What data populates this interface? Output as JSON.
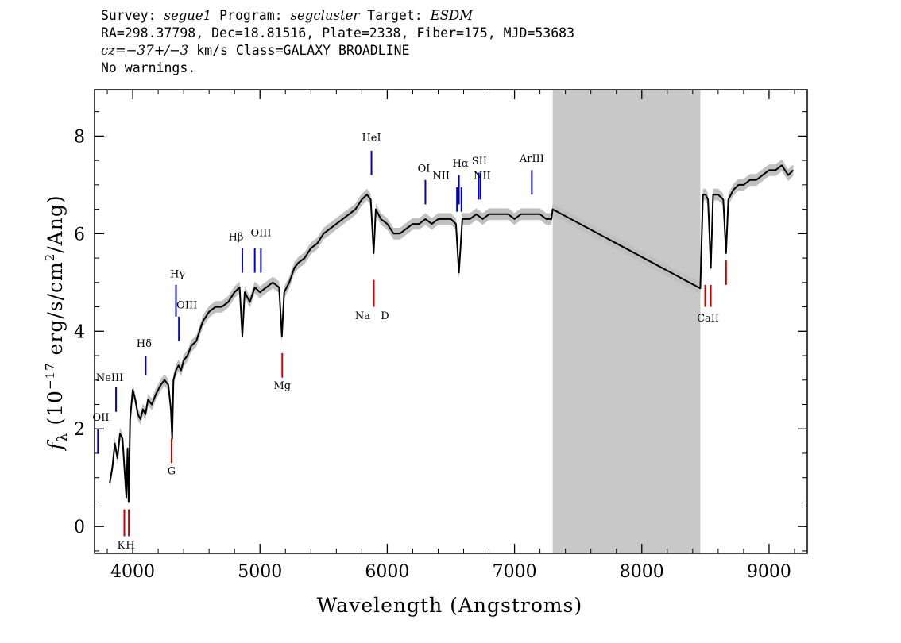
{
  "header": {
    "line1": {
      "survey_label": "Survey:",
      "survey": "segue1",
      "program_label": "Program:",
      "program": "segcluster",
      "target_label": "Target:",
      "target": "ESDM"
    },
    "line2": "RA=298.37798, Dec=18.81516, Plate=2338, Fiber=175, MJD=53683",
    "line3": {
      "cz_label": "cz=",
      "cz_value": "−37+/−3",
      "cz_unit": " km/s",
      "class_text": "Class=GALAXY BROADLINE"
    },
    "line4": "No warnings."
  },
  "colors": {
    "spectrum": "#000000",
    "error_band": "#c0c0c0",
    "masked_region": "#c8c8c8",
    "emission_marker": "#0000cc",
    "absorption_marker": "#cc0000"
  },
  "chart_data": {
    "type": "line",
    "title": "",
    "xlabel": "Wavelength (Angstroms)",
    "ylabel_parts": {
      "symbol": "f",
      "subscript": "λ",
      "pre": " (10",
      "exp": "−17",
      "mid": " erg/s/cm",
      "exp2": "2",
      "post": "/Ang)"
    },
    "xlim": [
      3700,
      9300
    ],
    "ylim": [
      -0.55,
      8.95
    ],
    "xticks": [
      4000,
      5000,
      6000,
      7000,
      8000,
      9000
    ],
    "xtick_labels": [
      "4000",
      "5000",
      "6000",
      "7000",
      "8000",
      "9000"
    ],
    "yticks": [
      0,
      2,
      4,
      6,
      8
    ],
    "ytick_labels": [
      "0",
      "2",
      "4",
      "6",
      "8"
    ],
    "masked_region": [
      7300,
      8460
    ],
    "spectrum": {
      "x": [
        3820,
        3840,
        3860,
        3880,
        3900,
        3920,
        3935,
        3950,
        3960,
        3968,
        3980,
        4000,
        4020,
        4040,
        4060,
        4080,
        4100,
        4120,
        4150,
        4180,
        4200,
        4220,
        4250,
        4280,
        4300,
        4310,
        4320,
        4340,
        4360,
        4380,
        4400,
        4430,
        4460,
        4500,
        4550,
        4600,
        4650,
        4700,
        4750,
        4800,
        4840,
        4861,
        4880,
        4920,
        4960,
        5000,
        5050,
        5100,
        5150,
        5172,
        5190,
        5230,
        5270,
        5300,
        5350,
        5400,
        5450,
        5500,
        5550,
        5600,
        5650,
        5700,
        5750,
        5800,
        5840,
        5870,
        5893,
        5910,
        5950,
        6000,
        6050,
        6100,
        6150,
        6200,
        6250,
        6300,
        6350,
        6400,
        6450,
        6500,
        6540,
        6563,
        6590,
        6650,
        6700,
        6750,
        6800,
        6850,
        6900,
        6950,
        7000,
        7050,
        7100,
        7150,
        7200,
        7250,
        7290,
        7300,
        8460,
        8480,
        8500,
        8520,
        8542,
        8560,
        8600,
        8640,
        8662,
        8680,
        8720,
        8760,
        8800,
        8850,
        8900,
        8950,
        9000,
        9050,
        9100,
        9150,
        9190
      ],
      "y": [
        0.9,
        1.2,
        1.7,
        1.4,
        1.9,
        1.8,
        1.2,
        0.6,
        1.6,
        0.5,
        2.2,
        2.8,
        2.6,
        2.3,
        2.2,
        2.4,
        2.3,
        2.6,
        2.5,
        2.7,
        2.8,
        2.9,
        3.0,
        2.9,
        2.4,
        1.8,
        3.0,
        3.2,
        3.3,
        3.2,
        3.4,
        3.5,
        3.7,
        3.8,
        4.2,
        4.4,
        4.5,
        4.5,
        4.6,
        4.8,
        4.9,
        3.9,
        4.8,
        4.6,
        4.9,
        4.8,
        4.9,
        5.0,
        4.9,
        3.9,
        4.8,
        5.0,
        5.3,
        5.4,
        5.5,
        5.7,
        5.8,
        6.0,
        6.1,
        6.2,
        6.3,
        6.4,
        6.5,
        6.7,
        6.8,
        6.7,
        5.6,
        6.5,
        6.3,
        6.2,
        6.0,
        6.0,
        6.1,
        6.2,
        6.2,
        6.3,
        6.2,
        6.3,
        6.3,
        6.3,
        6.2,
        5.2,
        6.3,
        6.3,
        6.4,
        6.3,
        6.4,
        6.4,
        6.4,
        6.4,
        6.3,
        6.4,
        6.4,
        6.4,
        6.4,
        6.3,
        6.3,
        6.5,
        4.88,
        6.8,
        6.8,
        6.7,
        5.3,
        6.8,
        6.8,
        6.7,
        5.6,
        6.7,
        6.9,
        7.0,
        7.0,
        7.1,
        7.1,
        7.2,
        7.3,
        7.3,
        7.4,
        7.2,
        7.3
      ],
      "error": 0.12
    },
    "emission_lines": [
      {
        "label": "OII",
        "x": 3727,
        "y0": 1.5,
        "y1": 2.0,
        "label_y": 2.17
      },
      {
        "label": "NeIII",
        "x": 3869,
        "y0": 2.35,
        "y1": 2.85,
        "label_y": 2.98
      },
      {
        "label": "Hδ",
        "x": 4102,
        "y0": 3.1,
        "y1": 3.5,
        "label_y": 3.68
      },
      {
        "label": "Hγ",
        "x": 4340,
        "y0": 4.3,
        "y1": 4.95,
        "label_y": 5.1
      },
      {
        "label": "OIII",
        "x": 4363,
        "y0": 3.8,
        "y1": 4.3,
        "label_y": 4.47
      },
      {
        "label": "Hβ",
        "x": 4861,
        "y0": 5.2,
        "y1": 5.7,
        "label_y": 5.87
      },
      {
        "label": "OIII",
        "x": 4959,
        "y0": 5.2,
        "y1": 5.7,
        "label_y": 5.95
      },
      {
        "label": "OIII",
        "x": 5007,
        "y0": 5.2,
        "y1": 5.7,
        "label_y": 5.95
      },
      {
        "label": "HeI",
        "x": 5876,
        "y0": 7.2,
        "y1": 7.7,
        "label_y": 7.9
      },
      {
        "label": "OI",
        "x": 6300,
        "y0": 6.6,
        "y1": 7.1,
        "label_y": 7.27
      },
      {
        "label": "NII",
        "x": 6548,
        "y0": 6.45,
        "y1": 6.95,
        "label_y": 7.12
      },
      {
        "label": "Hα",
        "x": 6563,
        "y0": 6.6,
        "y1": 7.2,
        "label_y": 7.37
      },
      {
        "label": "NII",
        "x": 6583,
        "y0": 6.45,
        "y1": 6.95,
        "label_y": 7.12
      },
      {
        "label": "SII",
        "x": 6716,
        "y0": 6.7,
        "y1": 7.25,
        "label_y": 7.42
      },
      {
        "label": "SII",
        "x": 6731,
        "y0": 6.7,
        "y1": 7.25,
        "label_y": 7.42
      },
      {
        "label": "ArIII",
        "x": 7136,
        "y0": 6.8,
        "y1": 7.3,
        "label_y": 7.47
      }
    ],
    "absorption_lines": [
      {
        "label": "K",
        "x": 3934,
        "y0": -0.2,
        "y1": 0.35,
        "label_y": -0.45
      },
      {
        "label": "H",
        "x": 3969,
        "y0": -0.2,
        "y1": 0.35,
        "label_y": -0.45
      },
      {
        "label": "G",
        "x": 4305,
        "y0": 1.3,
        "y1": 1.8,
        "label_y": 1.07
      },
      {
        "label": "Mg",
        "x": 5175,
        "y0": 3.05,
        "y1": 3.55,
        "label_y": 2.82
      },
      {
        "label": "Na",
        "x": 5894,
        "y0": 4.5,
        "y1": 5.05,
        "label_y": 4.25
      },
      {
        "label": "D",
        "x": 5894,
        "y0": 4.5,
        "y1": 5.05,
        "label_y": 4.25
      },
      {
        "label": "CaII",
        "x": 8498,
        "y0": 4.5,
        "y1": 4.95,
        "label_y": 4.2
      },
      {
        "label": "CaII",
        "x": 8542,
        "y0": 4.5,
        "y1": 4.95,
        "label_y": 4.2
      },
      {
        "label": "CaII",
        "x": 8662,
        "y0": 4.95,
        "y1": 5.45,
        "label_y": 4.2
      }
    ]
  }
}
